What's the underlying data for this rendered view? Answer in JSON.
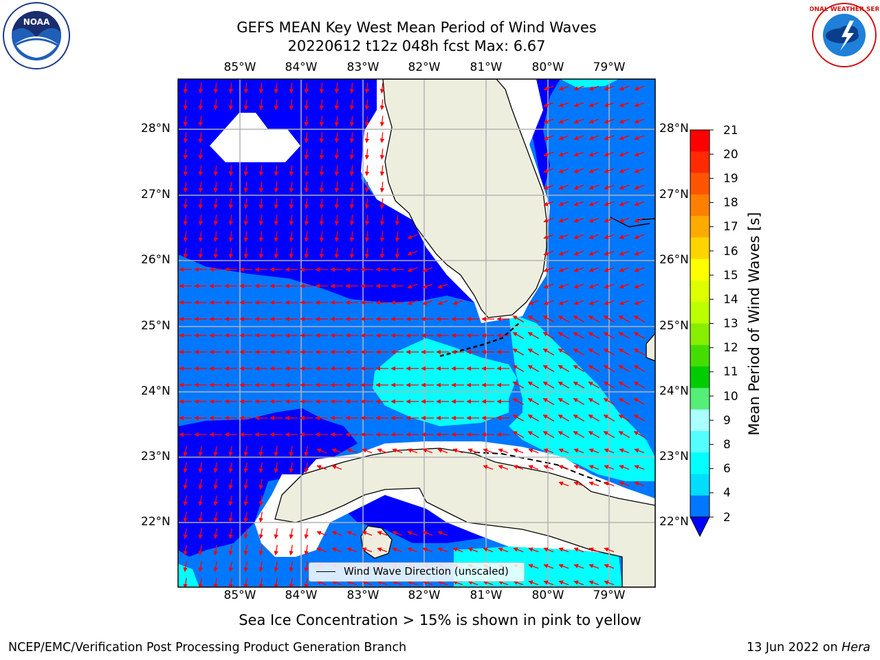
{
  "title": {
    "line1": "GEFS MEAN Key West Mean Period of Wind Waves",
    "line2": "20220612 t12z 048h fcst   Max: 6.67"
  },
  "logos": {
    "left": {
      "name": "noaa-logo",
      "text": "NOAA"
    },
    "right": {
      "name": "nws-logo",
      "text": "NATIONAL WEATHER SERVICE"
    }
  },
  "map": {
    "longitude_labels": [
      "85°W",
      "84°W",
      "83°W",
      "82°W",
      "81°W",
      "80°W",
      "79°W"
    ],
    "latitude_labels": [
      "28°N",
      "27°N",
      "26°N",
      "25°N",
      "24°N",
      "23°N",
      "22°N"
    ],
    "colors": {
      "land": "#eeeede",
      "arrow": "#ff0000",
      "grid": "#b4b4b4",
      "coast": "#000000"
    },
    "legend_text": "Wind Wave Direction (unscaled)"
  },
  "colorbar": {
    "label": "Mean Period of Wind Waves [s]",
    "ticks": [
      "21",
      "20",
      "19",
      "18",
      "17",
      "16",
      "15",
      "14",
      "13",
      "12",
      "11",
      "10",
      "9",
      "8",
      "6",
      "4",
      "2"
    ],
    "colors": [
      "#ff0000",
      "#ff2a00",
      "#ff5500",
      "#ff7f00",
      "#ffaa00",
      "#ffd400",
      "#ffff00",
      "#ddff00",
      "#bbff00",
      "#88ee00",
      "#44dd00",
      "#00cc00",
      "#55ee77",
      "#aaffff",
      "#55ffff",
      "#00ffff",
      "#00ddff",
      "#0077ff"
    ],
    "extend_color": "#0000ff"
  },
  "notes": {
    "ice": "Sea Ice Concentration > 15% is shown in pink to yellow",
    "footer_left": "NCEP/EMC/Verification Post Processing Product Generation Branch",
    "footer_date": "13 Jun 2022 on ",
    "footer_machine": "Hera"
  }
}
